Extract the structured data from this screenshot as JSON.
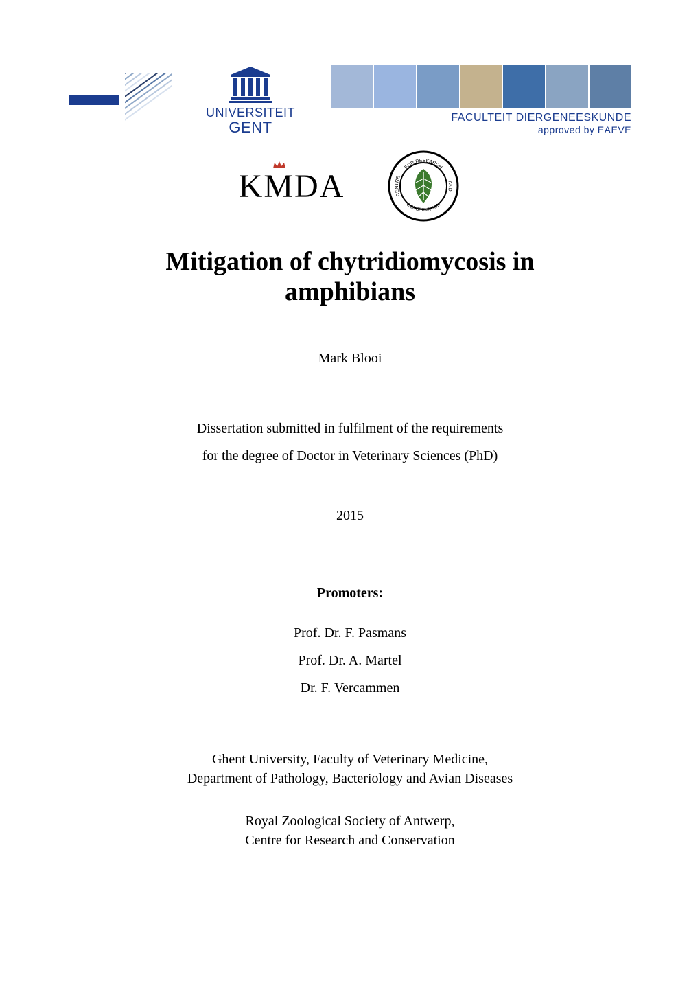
{
  "logos": {
    "ugent": {
      "temple_color": "#1b3c8f",
      "line1": "UNIVERSITEIT",
      "line2": "GENT",
      "fontsize_line1": 18,
      "fontsize_line2": 22
    },
    "faculty_banner": {
      "segment_colors": [
        "#a3b8d8",
        "#9ab5e0",
        "#7a9cc6",
        "#c4b28e",
        "#3e6ea8",
        "#8aa4c2",
        "#5e7fa6"
      ],
      "line1": "FACULTEIT DIERGENEESKUNDE",
      "line2": "approved by EAEVE",
      "line1_color": "#1b3c8f",
      "line2_color": "#1b3c8f"
    },
    "streaks": {
      "colors": [
        "#2a3f6a",
        "#5a7aa8",
        "#8fa8c8",
        "#b8c8de",
        "#d6e0ee"
      ],
      "count": 10
    },
    "kmda": {
      "text_parts": [
        "K",
        "M",
        "DA"
      ],
      "crown_color": "#c0392b",
      "text_color": "#000000",
      "fontsize": 48
    },
    "crc": {
      "ring_colors": [
        "#3b7a2e",
        "#000000"
      ],
      "leaf_color": "#3b7a2e",
      "ring_text_top": "FOR RESEARCH",
      "ring_text_left": "CENTRE",
      "ring_text_right": "AND",
      "ring_text_bottom": "CONSERVATION"
    }
  },
  "title": {
    "line1": "Mitigation of chytridiomycosis in",
    "line2": "amphibians",
    "fontsize": 38,
    "weight": "bold",
    "color": "#000000"
  },
  "author": "Mark Blooi",
  "dissertation": {
    "line1": "Dissertation submitted in fulfilment of the requirements",
    "line2": "for the degree of Doctor in Veterinary Sciences (PhD)"
  },
  "year": "2015",
  "promoters": {
    "heading": "Promoters:",
    "names": [
      "Prof. Dr. F. Pasmans",
      "Prof. Dr. A. Martel",
      "Dr. F. Vercammen"
    ]
  },
  "affiliations": [
    {
      "line1": "Ghent University, Faculty of Veterinary Medicine,",
      "line2": "Department of Pathology, Bacteriology and Avian Diseases"
    },
    {
      "line1": "Royal Zoological Society of Antwerp,",
      "line2": "Centre for Research and Conservation"
    }
  ],
  "page_bg": "#ffffff",
  "text_color": "#000000",
  "body_fontsize": 20
}
